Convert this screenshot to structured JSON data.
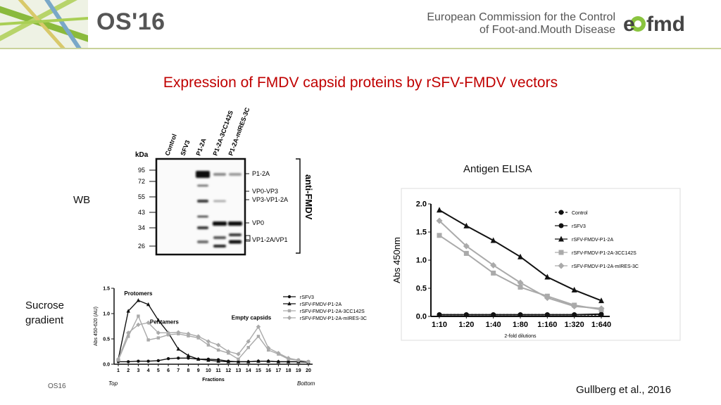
{
  "header": {
    "title": "OS'16",
    "commission_line1": "European Commission for the Control",
    "commission_line2": "of Foot-and.Mouth Disease",
    "logo_text": "eufmd"
  },
  "slide": {
    "title": "Expression of FMDV capsid proteins by rSFV-FMDV vectors",
    "wb_label": "WB",
    "sucrose_line1": "Sucrose",
    "sucrose_line2": "gradient",
    "elisa_title": "Antigen ELISA",
    "footer": "OS16",
    "citation": "Gullberg et al., 2016"
  },
  "western_blot": {
    "kda_label": "kDa",
    "lanes": [
      "Control",
      "SFV3",
      "P1-2A",
      "P1-2A-3CC142S",
      "P1-2A-mIRES-3C"
    ],
    "markers": [
      "95",
      "72",
      "55",
      "43",
      "34",
      "26"
    ],
    "band_labels": [
      "P1-2A",
      "VP0-VP3",
      "VP3-VP1-2A",
      "VP0",
      "VP1-2A/VP1"
    ],
    "antibody": "anti-FMDV"
  },
  "chart_data": [
    {
      "type": "line",
      "title": "",
      "xlabel": "2-fold dilutions",
      "ylabel": "Abs 450nm",
      "categories": [
        "1:10",
        "1:20",
        "1:40",
        "1:80",
        "1:160",
        "1:320",
        "1:640"
      ],
      "ylim": [
        0,
        2.0
      ],
      "yticks": [
        "0.0",
        "0.5",
        "1.0",
        "1.5",
        "2.0"
      ],
      "legend_position": "top-right",
      "series": [
        {
          "name": "Control",
          "values": [
            0.03,
            0.03,
            0.03,
            0.03,
            0.03,
            0.03,
            0.03
          ],
          "color": "#111111",
          "marker": "circle",
          "dashed": true
        },
        {
          "name": "rSFV3",
          "values": [
            0.03,
            0.03,
            0.03,
            0.03,
            0.03,
            0.03,
            0.04
          ],
          "color": "#111111",
          "marker": "circle",
          "dashed": false
        },
        {
          "name": "rSFV-FMDV-P1-2A",
          "values": [
            1.89,
            1.61,
            1.35,
            1.06,
            0.7,
            0.47,
            0.28
          ],
          "color": "#111111",
          "marker": "triangle",
          "dashed": false
        },
        {
          "name": "rSFV-FMDV-P1-2A-3CC142S",
          "values": [
            1.44,
            1.12,
            0.77,
            0.52,
            0.36,
            0.2,
            0.12
          ],
          "color": "#aaaaaa",
          "marker": "square",
          "dashed": false
        },
        {
          "name": "rSFV-FMDV-P1-2A-mIRES-3C",
          "values": [
            1.7,
            1.25,
            0.91,
            0.6,
            0.33,
            0.18,
            0.14
          ],
          "color": "#aaaaaa",
          "marker": "diamond",
          "dashed": false
        }
      ]
    },
    {
      "type": "line",
      "title": "",
      "xlabel": "Fractions",
      "ylabel": "Abs 450-620 (AU)",
      "categories": [
        "1",
        "2",
        "3",
        "4",
        "5",
        "6",
        "7",
        "8",
        "9",
        "10",
        "11",
        "12",
        "13",
        "14",
        "15",
        "16",
        "17",
        "18",
        "19",
        "20"
      ],
      "ylim": [
        0,
        1.5
      ],
      "yticks": [
        "0.0",
        "0.5",
        "1.0",
        "1.5"
      ],
      "x_left_label": "Top",
      "x_right_label": "Bottom",
      "annotations": [
        {
          "text": "Protomers",
          "x": 3,
          "y": 1.36
        },
        {
          "text": "Pentamers",
          "x": 5.6,
          "y": 0.8
        },
        {
          "text": "Empty capsids",
          "x": 14.3,
          "y": 0.88
        }
      ],
      "legend_position": "top-right",
      "series": [
        {
          "name": "rSFV3",
          "values": [
            0.05,
            0.05,
            0.06,
            0.06,
            0.07,
            0.11,
            0.12,
            0.12,
            0.1,
            0.1,
            0.09,
            0.06,
            0.05,
            0.05,
            0.06,
            0.06,
            0.05,
            0.05,
            0.05,
            0.05
          ],
          "color": "#111111",
          "marker": "circle"
        },
        {
          "name": "rSFV-FMDV-P1-2A",
          "values": [
            0.1,
            1.05,
            1.26,
            1.18,
            0.87,
            0.62,
            0.3,
            0.17,
            0.1,
            0.08,
            0.06,
            0.05,
            0.05,
            0.05,
            0.06,
            0.06,
            0.05,
            0.05,
            0.05,
            0.04
          ],
          "color": "#111111",
          "marker": "triangle"
        },
        {
          "name": "rSFV-FMDV-P1-2A-3CC142S",
          "values": [
            0.08,
            0.55,
            0.95,
            0.48,
            0.52,
            0.58,
            0.6,
            0.56,
            0.52,
            0.38,
            0.28,
            0.22,
            0.1,
            0.33,
            0.55,
            0.28,
            0.2,
            0.1,
            0.08,
            0.05
          ],
          "color": "#aaaaaa",
          "marker": "square"
        },
        {
          "name": "rSFV-FMDV-P1-2A-mIRES-3C",
          "values": [
            0.1,
            0.62,
            0.78,
            0.82,
            0.62,
            0.62,
            0.63,
            0.6,
            0.55,
            0.45,
            0.38,
            0.25,
            0.2,
            0.45,
            0.74,
            0.32,
            0.22,
            0.12,
            0.08,
            0.05
          ],
          "color": "#aaaaaa",
          "marker": "diamond"
        }
      ]
    }
  ]
}
